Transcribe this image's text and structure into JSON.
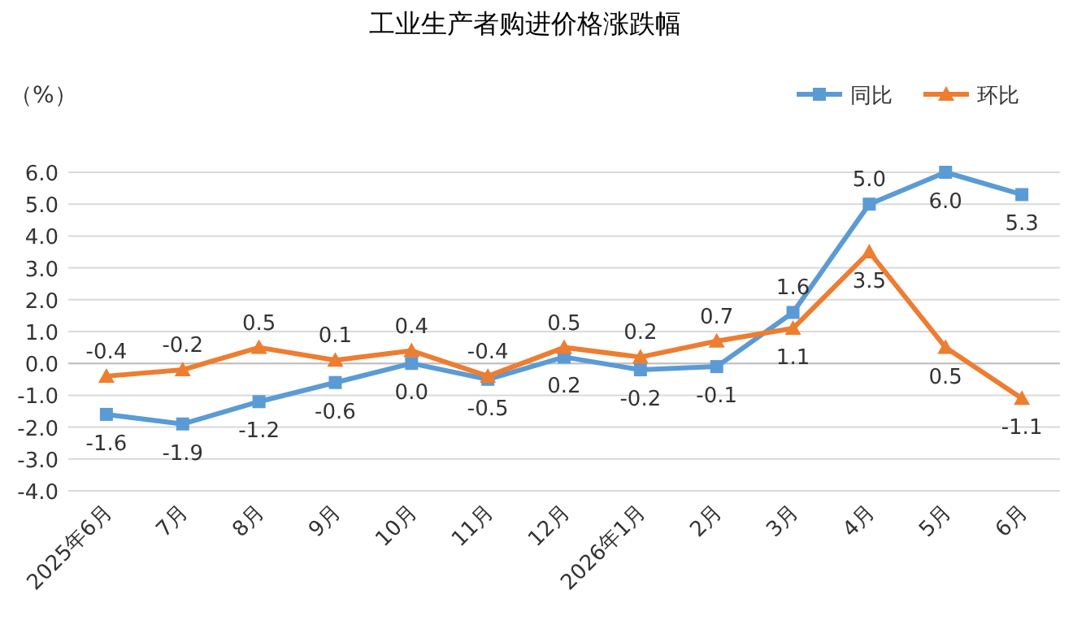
{
  "chart_data": {
    "type": "line",
    "title": "工业生产者购进价格涨跌幅",
    "ylabel": "（%）",
    "categories": [
      "2025年6月",
      "7月",
      "8月",
      "9月",
      "10月",
      "11月",
      "12月",
      "2026年1月",
      "2月",
      "3月",
      "4月",
      "5月",
      "6月"
    ],
    "series": [
      {
        "name": "同比",
        "color": "#5b9bd5",
        "marker": "square",
        "values": [
          -1.6,
          -1.9,
          -1.2,
          -0.6,
          0.0,
          -0.5,
          0.2,
          -0.2,
          -0.1,
          1.6,
          5.0,
          6.0,
          5.3
        ],
        "value_labels": [
          "-1.6",
          "-1.9",
          "-1.2",
          "-0.6",
          "0.0",
          "-0.5",
          "0.2",
          "-0.2",
          "-0.1",
          "1.6",
          "5.0",
          "6.0",
          "5.3"
        ]
      },
      {
        "name": "环比",
        "color": "#ed7d31",
        "marker": "triangle",
        "values": [
          -0.4,
          -0.2,
          0.5,
          0.1,
          0.4,
          -0.4,
          0.5,
          0.2,
          0.7,
          1.1,
          3.5,
          0.5,
          -1.1
        ],
        "value_labels": [
          "-0.4",
          "-0.2",
          "0.5",
          "0.1",
          "0.4",
          "-0.4",
          "0.5",
          "0.2",
          "0.7",
          "1.1",
          "3.5",
          "0.5",
          "-1.1"
        ]
      }
    ],
    "ylim": [
      -4,
      6
    ],
    "yticks": [
      {
        "value": -4,
        "label": "-4.0"
      },
      {
        "value": -3,
        "label": "-3.0"
      },
      {
        "value": -2,
        "label": "-2.0"
      },
      {
        "value": -1,
        "label": "-1.0"
      },
      {
        "value": 0,
        "label": "0.0"
      },
      {
        "value": 1,
        "label": "1.0"
      },
      {
        "value": 2,
        "label": "2.0"
      },
      {
        "value": 3,
        "label": "3.0"
      },
      {
        "value": 4,
        "label": "4.0"
      },
      {
        "value": 5,
        "label": "5.0"
      },
      {
        "value": 6,
        "label": "6.0"
      }
    ],
    "grid": "y",
    "legend": "top right",
    "line_style": "solid"
  }
}
